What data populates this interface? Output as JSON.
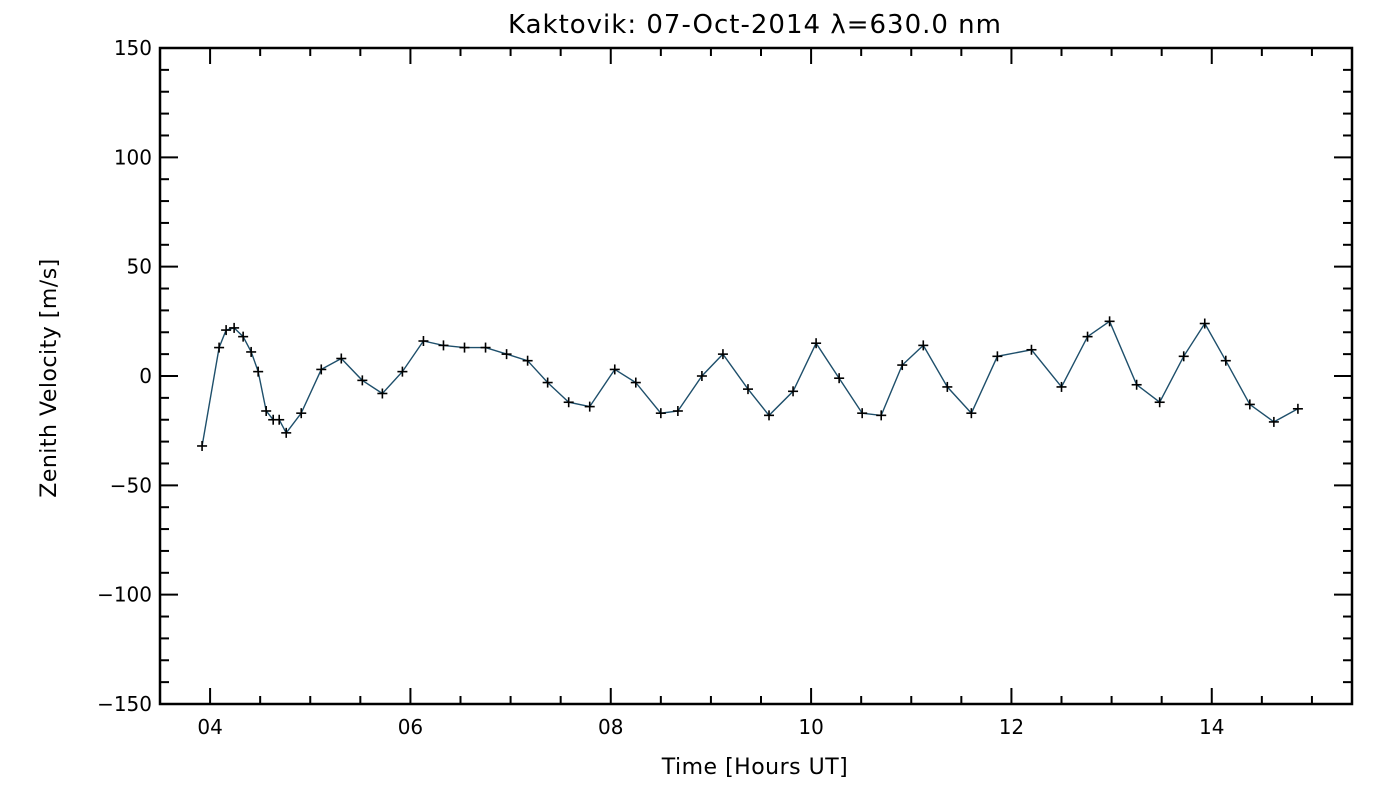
{
  "chart_data": {
    "type": "line",
    "title": "Kaktovik: 07-Oct-2014 λ=630.0 nm",
    "xlabel": "Time [Hours UT]",
    "ylabel": "Zenith Velocity [m/s]",
    "xlim": [
      3.5,
      15.4
    ],
    "ylim": [
      -150,
      150
    ],
    "x_major_ticks": [
      4,
      6,
      8,
      10,
      12,
      14
    ],
    "x_tick_labels": [
      "04",
      "06",
      "08",
      "10",
      "12",
      "14"
    ],
    "y_major_ticks": [
      -150,
      -100,
      -50,
      0,
      50,
      100,
      150
    ],
    "y_tick_labels": [
      "−150",
      "−100",
      "−50",
      "0",
      "50",
      "100",
      "150"
    ],
    "x_minor_step": 0.5,
    "y_minor_step": 10,
    "grid": false,
    "line_color": "#1e4f6b",
    "marker": "plus",
    "series": [
      {
        "x": [
          3.92,
          4.09,
          4.16,
          4.24,
          4.33,
          4.41,
          4.48,
          4.56,
          4.63,
          4.69,
          4.76,
          4.91,
          5.11,
          5.31,
          5.52,
          5.72,
          5.92,
          6.13,
          6.33,
          6.54,
          6.75,
          6.96,
          7.17,
          7.37,
          7.58,
          7.79,
          8.04,
          8.25,
          8.5,
          8.67,
          8.91,
          9.12,
          9.37,
          9.58,
          9.82,
          10.05,
          10.28,
          10.51,
          10.7,
          10.91,
          11.12,
          11.36,
          11.6,
          11.86,
          12.2,
          12.5,
          12.76,
          12.98,
          13.25,
          13.48,
          13.72,
          13.93,
          14.14,
          14.38,
          14.62,
          14.86
        ],
        "y": [
          -32,
          13,
          21,
          22,
          18,
          11,
          2,
          -16,
          -20,
          -20,
          -26,
          -17,
          3,
          8,
          -2,
          -8,
          2,
          16,
          14,
          13,
          13,
          10,
          7,
          -3,
          -12,
          -14,
          3,
          -3,
          -17,
          -16,
          0,
          10,
          -6,
          -18,
          -7,
          15,
          -1,
          -17,
          -18,
          5,
          14,
          -5,
          -17,
          9,
          12,
          -5,
          18,
          25,
          -4,
          -12,
          9,
          24,
          7,
          -13,
          -21,
          -15
        ]
      }
    ]
  }
}
